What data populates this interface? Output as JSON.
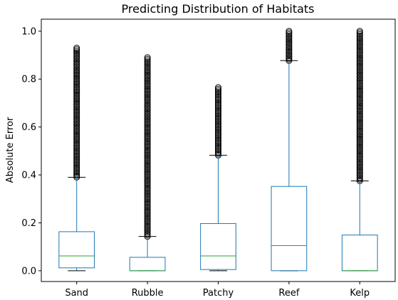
{
  "chart_data": {
    "type": "box",
    "title": "Predicting Distribution of Habitats",
    "xlabel": "",
    "ylabel": "Absolute Error",
    "ylim": [
      -0.045,
      1.05
    ],
    "yticks": [
      0.0,
      0.2,
      0.4,
      0.6,
      0.8,
      1.0
    ],
    "ytick_labels": [
      "0.0",
      "0.2",
      "0.4",
      "0.6",
      "0.8",
      "1.0"
    ],
    "categories": [
      "Sand",
      "Rubble",
      "Patchy",
      "Reef",
      "Kelp"
    ],
    "grid": false,
    "colors": {
      "box": "#1f77b4",
      "median": "#2ca02c",
      "whisker_cap": "#000000",
      "flier": "#000000"
    },
    "boxes": [
      {
        "name": "Sand",
        "min": 0.0,
        "q1": 0.012,
        "median": 0.062,
        "q3": 0.163,
        "max": 0.39,
        "flier_range": [
          0.39,
          0.93
        ]
      },
      {
        "name": "Rubble",
        "min": 0.0,
        "q1": 0.0,
        "median": 0.0,
        "q3": 0.056,
        "max": 0.143,
        "flier_range": [
          0.143,
          0.89
        ]
      },
      {
        "name": "Patchy",
        "min": 0.0,
        "q1": 0.005,
        "median": 0.062,
        "q3": 0.197,
        "max": 0.482,
        "flier_range": [
          0.482,
          0.765
        ]
      },
      {
        "name": "Reef",
        "min": 0.0,
        "q1": 0.0,
        "median": 0.105,
        "q3": 0.352,
        "max": 0.877,
        "flier_range": [
          0.877,
          1.0
        ]
      },
      {
        "name": "Kelp",
        "min": 0.0,
        "q1": 0.0,
        "median": 0.0,
        "q3": 0.149,
        "max": 0.375,
        "flier_range": [
          0.375,
          1.0
        ]
      }
    ]
  }
}
